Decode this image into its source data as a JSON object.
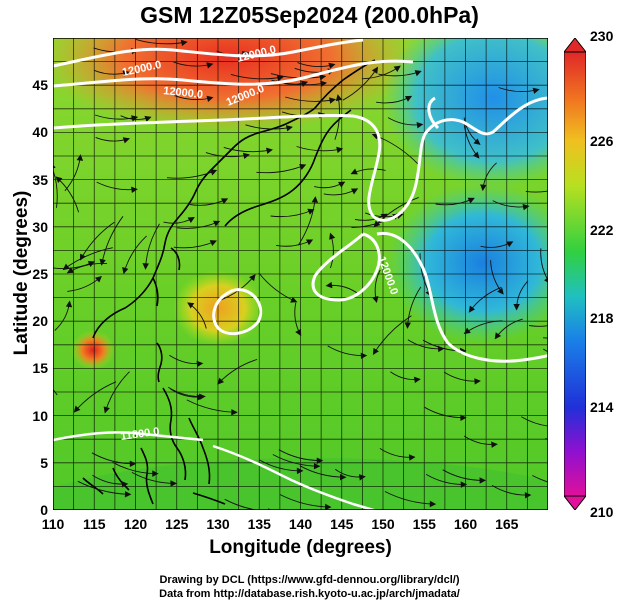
{
  "title": "GSM 12Z05Sep2024 (200.0hPa)",
  "axes": {
    "xlabel": "Longitude (degrees)",
    "ylabel": "Latitude (degrees)",
    "xticks": [
      "110",
      "115",
      "120",
      "125",
      "130",
      "135",
      "140",
      "145",
      "150",
      "155",
      "160",
      "165"
    ],
    "yticks": [
      "0",
      "5",
      "10",
      "15",
      "20",
      "25",
      "30",
      "35",
      "40",
      "45"
    ],
    "xlim": [
      110,
      170
    ],
    "ylim": [
      0,
      50
    ]
  },
  "colorbar": {
    "ticks": [
      "210",
      "214",
      "218",
      "222",
      "226",
      "230"
    ],
    "range": [
      210,
      230
    ],
    "colors": [
      "#e0109a",
      "#7a10d8",
      "#1a2fd8",
      "#1a8fe8",
      "#20c8a0",
      "#40d020",
      "#b8e020",
      "#f0c020",
      "#f07020",
      "#e02828"
    ]
  },
  "contours": {
    "labels": [
      "12000.0",
      "12000.0",
      "12000.0",
      "12000.0",
      "12000.0",
      "11800.0"
    ]
  },
  "credits": {
    "line1": "Drawing by DCL (https://www.gfd-dennou.org/library/dcl/)",
    "line2": "Data from http://database.rish.kyoto-u.ac.jp/arch/jmadata/"
  }
}
